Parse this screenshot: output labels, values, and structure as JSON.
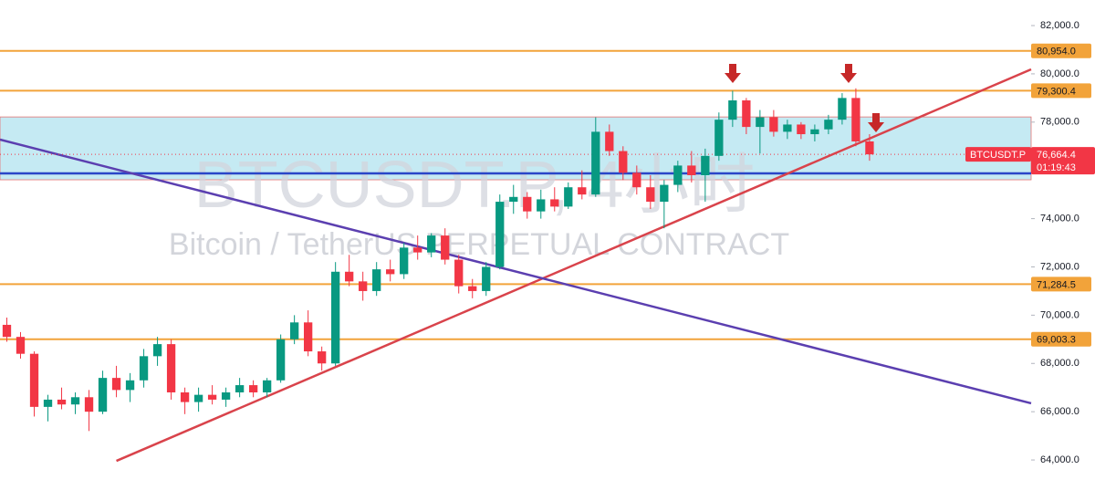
{
  "chart_data": {
    "type": "candlestick",
    "watermark": {
      "symbol": "BTCUSDT.P, 4小时",
      "description": "Bitcoin / TetherUS PERPETUAL CONTRACT"
    },
    "xlim": [
      -0.5,
      74.8
    ],
    "ylim": [
      63170,
      83060
    ],
    "yticks": [
      {
        "value": 64000,
        "label": "64,000.0"
      },
      {
        "value": 66000,
        "label": "66,000.0"
      },
      {
        "value": 68000,
        "label": "68,000.0"
      },
      {
        "value": 70000,
        "label": "70,000.0"
      },
      {
        "value": 72000,
        "label": "72,000.0"
      },
      {
        "value": 74000,
        "label": "74,000.0"
      },
      {
        "value": 76000,
        "label": "76,000.0"
      },
      {
        "value": 78000,
        "label": "78,000.0"
      },
      {
        "value": 80000,
        "label": "80,000.0"
      },
      {
        "value": 82000,
        "label": "82,000.0"
      }
    ],
    "up_color": "#089981",
    "down_color": "#f23645",
    "open": [
      69600,
      69100,
      68400,
      66200,
      66500,
      66300,
      66600,
      66000,
      67400,
      66900,
      67300,
      68300,
      68800,
      66800,
      66400,
      66700,
      66500,
      66800,
      67100,
      66800,
      67300,
      69000,
      69700,
      68500,
      68000,
      71800,
      71400,
      71000,
      71900,
      71700,
      72800,
      72600,
      73300,
      72300,
      71200,
      71000,
      72000,
      74700,
      74900,
      74300,
      74800,
      74500,
      75300,
      75000,
      77600,
      76800,
      75900,
      75300,
      74700,
      75400,
      76200,
      75800,
      76600,
      78100,
      78900,
      77800,
      78200,
      77600,
      77900,
      77500,
      77700,
      78100,
      79000,
      77200
    ],
    "high": [
      69900,
      69300,
      68500,
      66700,
      67000,
      66800,
      66900,
      67700,
      67900,
      67600,
      68600,
      69100,
      69000,
      67000,
      67000,
      67100,
      67000,
      67400,
      67300,
      67400,
      69200,
      70000,
      70200,
      68700,
      72200,
      72500,
      71800,
      72200,
      72300,
      73000,
      73300,
      73400,
      73600,
      72500,
      71500,
      72200,
      75000,
      75400,
      75100,
      75200,
      75300,
      75500,
      76000,
      78200,
      77900,
      77000,
      76200,
      75800,
      75600,
      76400,
      76800,
      76900,
      78400,
      79300,
      79000,
      78500,
      78500,
      78100,
      78000,
      77900,
      78300,
      79200,
      79400,
      77500
    ],
    "low": [
      68900,
      68200,
      65800,
      65600,
      66100,
      65900,
      65200,
      65900,
      66600,
      66400,
      67000,
      67900,
      66500,
      65900,
      66000,
      66300,
      66200,
      66600,
      66600,
      66600,
      67200,
      68800,
      68300,
      67700,
      67900,
      71200,
      70600,
      70800,
      71400,
      71500,
      72300,
      72400,
      72100,
      70900,
      70700,
      70800,
      71900,
      74200,
      74000,
      74000,
      74300,
      74400,
      74800,
      74900,
      76600,
      75600,
      75000,
      74400,
      73600,
      75100,
      75500,
      74700,
      76400,
      77800,
      77500,
      76700,
      77400,
      77300,
      77300,
      77200,
      77500,
      77900,
      77000,
      76400
    ],
    "close": [
      69100,
      68400,
      66200,
      66500,
      66300,
      66600,
      66000,
      67400,
      66900,
      67300,
      68300,
      68800,
      66800,
      66400,
      66700,
      66500,
      66800,
      67100,
      66800,
      67300,
      69000,
      69700,
      68500,
      68000,
      71800,
      71400,
      71000,
      71900,
      71700,
      72800,
      72600,
      73300,
      72300,
      71200,
      71000,
      72000,
      74700,
      74900,
      74300,
      74800,
      74500,
      75300,
      75000,
      77600,
      76800,
      75900,
      75300,
      74700,
      75400,
      76200,
      75800,
      76600,
      78100,
      78900,
      77800,
      78200,
      77600,
      77900,
      77500,
      77700,
      78100,
      79000,
      77200,
      76664.4
    ],
    "zone": {
      "from": 75610,
      "to": 78215,
      "color": "#b2e3ef"
    },
    "support_line": {
      "value": 75875,
      "color": "#2a46c8"
    },
    "levels": [
      {
        "value": 80954,
        "label": "80,954.0"
      },
      {
        "value": 79300.4,
        "label": "79,300.4"
      },
      {
        "value": 71284.5,
        "label": "71,284.5"
      },
      {
        "value": 69003.3,
        "label": "69,003.3"
      }
    ],
    "level_color": "#f2a33a",
    "trendlines": [
      {
        "x": [
          8,
          74.8
        ],
        "y": [
          63962,
          80185
        ],
        "color": "#d9434b"
      },
      {
        "x": [
          -0.5,
          74.8
        ],
        "y": [
          77274,
          66348
        ],
        "color": "#5b3fb0"
      }
    ],
    "last_price": {
      "symbol": "BTCUSDT.P",
      "value": 76664.4,
      "label": "76,664.4",
      "countdown": "01:19:43"
    }
  }
}
